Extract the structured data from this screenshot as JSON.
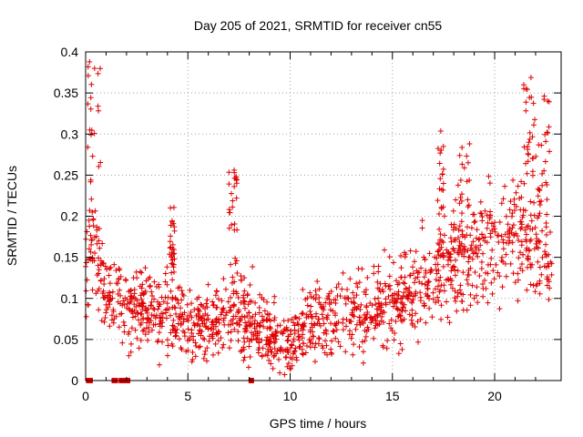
{
  "chart_data": {
    "type": "scatter",
    "title": "Day 205 of 2021, SRMTID for receiver cn55",
    "xlabel": "GPS time / hours",
    "ylabel": "SRMTID / TECUs",
    "xlim": [
      0,
      23.25
    ],
    "ylim": [
      0,
      0.4
    ],
    "x_ticks": [
      0,
      5,
      10,
      15,
      20
    ],
    "x_tick_labels": [
      "0",
      "5",
      "10",
      "15",
      "20"
    ],
    "y_ticks": [
      0,
      0.05,
      0.1,
      0.15,
      0.2,
      0.25,
      0.3,
      0.35,
      0.4
    ],
    "y_tick_labels": [
      "0",
      "0.05",
      "0.1",
      "0.15",
      "0.2",
      "0.25",
      "0.3",
      "0.35",
      "0.4"
    ],
    "grid": true,
    "marker": "plus",
    "marker_color": "#e00000",
    "zero_marker": "square",
    "series": [
      {
        "name": "SRMTID",
        "trend_hours": [
          0,
          0.3,
          0.6,
          1,
          1.4,
          2,
          2.5,
          3,
          4,
          5,
          6,
          7,
          8,
          9,
          9.5,
          10,
          11,
          12,
          13,
          14,
          15,
          16,
          17,
          18,
          19,
          20,
          21,
          22,
          22.8
        ],
        "trend_values": [
          0.14,
          0.18,
          0.14,
          0.11,
          0.1,
          0.085,
          0.085,
          0.085,
          0.085,
          0.07,
          0.065,
          0.08,
          0.075,
          0.06,
          0.05,
          0.045,
          0.07,
          0.075,
          0.085,
          0.085,
          0.095,
          0.105,
          0.125,
          0.145,
          0.155,
          0.17,
          0.18,
          0.17,
          0.14
        ],
        "peaks": [
          {
            "x_range": [
              0.1,
              0.75
            ],
            "y_range": [
              0.15,
              0.39
            ]
          },
          {
            "x_range": [
              4.1,
              4.35
            ],
            "y_range": [
              0.13,
              0.215
            ]
          },
          {
            "x_range": [
              7,
              7.4
            ],
            "y_range": [
              0.12,
              0.265
            ]
          },
          {
            "x_range": [
              17.2,
              17.5
            ],
            "y_range": [
              0.14,
              0.318
            ]
          },
          {
            "x_range": [
              18.2,
              18.8
            ],
            "y_range": [
              0.13,
              0.29
            ]
          },
          {
            "x_range": [
              21.4,
              21.9
            ],
            "y_range": [
              0.2,
              0.372
            ]
          },
          {
            "x_range": [
              21.9,
              22.7
            ],
            "y_range": [
              0.18,
              0.36
            ]
          }
        ],
        "zero_values_hours": [
          0.15,
          0.22,
          1.4,
          1.45,
          1.75,
          1.85,
          2.0,
          2.05,
          8.1
        ]
      }
    ]
  }
}
